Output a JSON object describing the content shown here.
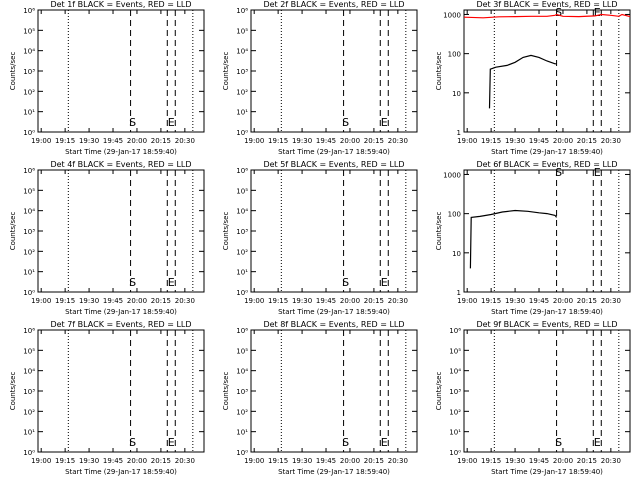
{
  "chart_data": [
    {
      "type": "line",
      "title": "Det 1f BLACK = Events, RED = LLD",
      "xlabel": "Start Time (29-Jan-17 18:59:40)",
      "ylabel": "Counts/sec",
      "log_y": true,
      "xlim": [
        -2,
        102
      ],
      "xticks": [
        {
          "value": 0,
          "label": "19:00"
        },
        {
          "value": 15,
          "label": "19:15"
        },
        {
          "value": 30,
          "label": "19:30"
        },
        {
          "value": 45,
          "label": "19:45"
        },
        {
          "value": 60,
          "label": "20:00"
        },
        {
          "value": 75,
          "label": "20:15"
        },
        {
          "value": 90,
          "label": "20:30"
        }
      ],
      "ylim": [
        1,
        1000000
      ],
      "yticks": [
        {
          "value": 1,
          "label": "10⁰"
        },
        {
          "value": 10,
          "label": "10¹"
        },
        {
          "value": 100,
          "label": "10²"
        },
        {
          "value": 1000,
          "label": "10³"
        },
        {
          "value": 10000,
          "label": "10⁴"
        },
        {
          "value": 100000,
          "label": "10⁵"
        },
        {
          "value": 1000000,
          "label": "10⁶"
        }
      ],
      "markers": [
        {
          "x": 17,
          "style": "dotted"
        },
        {
          "x": 56,
          "style": "dashed",
          "label": "S"
        },
        {
          "x": 79,
          "style": "dashed"
        },
        {
          "x": 84,
          "style": "dashed",
          "label": "E"
        },
        {
          "x": 95,
          "style": "dotted"
        }
      ],
      "series": []
    },
    {
      "type": "line",
      "title": "Det 2f BLACK = Events, RED = LLD",
      "xlabel": "Start Time (29-Jan-17 18:59:40)",
      "ylabel": "Counts/sec",
      "log_y": true,
      "xlim": [
        -2,
        102
      ],
      "xticks": [
        {
          "value": 0,
          "label": "19:00"
        },
        {
          "value": 15,
          "label": "19:15"
        },
        {
          "value": 30,
          "label": "19:30"
        },
        {
          "value": 45,
          "label": "19:45"
        },
        {
          "value": 60,
          "label": "20:00"
        },
        {
          "value": 75,
          "label": "20:15"
        },
        {
          "value": 90,
          "label": "20:30"
        }
      ],
      "ylim": [
        1,
        1000000
      ],
      "yticks": [
        {
          "value": 1,
          "label": "10⁰"
        },
        {
          "value": 10,
          "label": "10¹"
        },
        {
          "value": 100,
          "label": "10²"
        },
        {
          "value": 1000,
          "label": "10³"
        },
        {
          "value": 10000,
          "label": "10⁴"
        },
        {
          "value": 100000,
          "label": "10⁵"
        },
        {
          "value": 1000000,
          "label": "10⁶"
        }
      ],
      "markers": [
        {
          "x": 17,
          "style": "dotted"
        },
        {
          "x": 56,
          "style": "dashed",
          "label": "S"
        },
        {
          "x": 79,
          "style": "dashed"
        },
        {
          "x": 84,
          "style": "dashed",
          "label": "E"
        },
        {
          "x": 95,
          "style": "dotted"
        }
      ],
      "series": []
    },
    {
      "type": "line",
      "title": "Det 3f BLACK = Events, RED = LLD",
      "xlabel": "Start Time (29-Jan-17 18:59:40)",
      "ylabel": "Counts/sec",
      "log_y": true,
      "xlim": [
        -2,
        102
      ],
      "xticks": [
        {
          "value": 0,
          "label": "19:00"
        },
        {
          "value": 15,
          "label": "19:15"
        },
        {
          "value": 30,
          "label": "19:30"
        },
        {
          "value": 45,
          "label": "19:45"
        },
        {
          "value": 60,
          "label": "20:00"
        },
        {
          "value": 75,
          "label": "20:15"
        },
        {
          "value": 90,
          "label": "20:30"
        }
      ],
      "ylim": [
        1,
        1300
      ],
      "yticks": [
        1,
        10,
        100,
        1000
      ],
      "markers": [
        {
          "x": 17,
          "style": "dotted"
        },
        {
          "x": 56,
          "style": "dashed",
          "label": "S"
        },
        {
          "x": 79,
          "style": "dashed"
        },
        {
          "x": 84,
          "style": "dashed",
          "label": "E"
        },
        {
          "x": 95,
          "style": "dotted"
        }
      ],
      "series": [
        {
          "name": "Events",
          "color": "#000000",
          "x": [
            14,
            14.5,
            18,
            25,
            30,
            35,
            40,
            45,
            50,
            55,
            56
          ],
          "values": [
            4,
            40,
            45,
            50,
            60,
            80,
            90,
            80,
            65,
            55,
            55
          ]
        },
        {
          "name": "LLD",
          "color": "#ff0000",
          "x": [
            -2,
            10,
            20,
            30,
            40,
            50,
            55,
            56,
            60,
            70,
            80,
            84,
            90,
            95,
            97,
            102
          ],
          "values": [
            850,
            820,
            870,
            880,
            900,
            900,
            950,
            1000,
            900,
            880,
            920,
            1000,
            950,
            900,
            1000,
            880
          ]
        }
      ]
    },
    {
      "type": "line",
      "title": "Det 4f BLACK = Events, RED = LLD",
      "xlabel": "Start Time (29-Jan-17 18:59:40)",
      "ylabel": "Counts/sec",
      "log_y": true,
      "xlim": [
        -2,
        102
      ],
      "xticks": [
        {
          "value": 0,
          "label": "19:00"
        },
        {
          "value": 15,
          "label": "19:15"
        },
        {
          "value": 30,
          "label": "19:30"
        },
        {
          "value": 45,
          "label": "19:45"
        },
        {
          "value": 60,
          "label": "20:00"
        },
        {
          "value": 75,
          "label": "20:15"
        },
        {
          "value": 90,
          "label": "20:30"
        }
      ],
      "ylim": [
        1,
        1000000
      ],
      "yticks": [
        {
          "value": 1,
          "label": "10⁰"
        },
        {
          "value": 10,
          "label": "10¹"
        },
        {
          "value": 100,
          "label": "10²"
        },
        {
          "value": 1000,
          "label": "10³"
        },
        {
          "value": 10000,
          "label": "10⁴"
        },
        {
          "value": 100000,
          "label": "10⁵"
        },
        {
          "value": 1000000,
          "label": "10⁶"
        }
      ],
      "markers": [
        {
          "x": 17,
          "style": "dotted"
        },
        {
          "x": 56,
          "style": "dashed",
          "label": "S"
        },
        {
          "x": 79,
          "style": "dashed"
        },
        {
          "x": 84,
          "style": "dashed",
          "label": "E"
        },
        {
          "x": 95,
          "style": "dotted"
        }
      ],
      "series": []
    },
    {
      "type": "line",
      "title": "Det 5f BLACK = Events, RED = LLD",
      "xlabel": "Start Time (29-Jan-17 18:59:40)",
      "ylabel": "Counts/sec",
      "log_y": true,
      "xlim": [
        -2,
        102
      ],
      "xticks": [
        {
          "value": 0,
          "label": "19:00"
        },
        {
          "value": 15,
          "label": "19:15"
        },
        {
          "value": 30,
          "label": "19:30"
        },
        {
          "value": 45,
          "label": "19:45"
        },
        {
          "value": 60,
          "label": "20:00"
        },
        {
          "value": 75,
          "label": "20:15"
        },
        {
          "value": 90,
          "label": "20:30"
        }
      ],
      "ylim": [
        1,
        1000000
      ],
      "yticks": [
        {
          "value": 1,
          "label": "10⁰"
        },
        {
          "value": 10,
          "label": "10¹"
        },
        {
          "value": 100,
          "label": "10²"
        },
        {
          "value": 1000,
          "label": "10³"
        },
        {
          "value": 10000,
          "label": "10⁴"
        },
        {
          "value": 100000,
          "label": "10⁵"
        },
        {
          "value": 1000000,
          "label": "10⁶"
        }
      ],
      "markers": [
        {
          "x": 17,
          "style": "dotted"
        },
        {
          "x": 56,
          "style": "dashed",
          "label": "S"
        },
        {
          "x": 79,
          "style": "dashed"
        },
        {
          "x": 84,
          "style": "dashed",
          "label": "E"
        },
        {
          "x": 95,
          "style": "dotted"
        }
      ],
      "series": []
    },
    {
      "type": "line",
      "title": "Det 6f BLACK = Events, RED = LLD",
      "xlabel": "Start Time (29-Jan-17 18:59:40)",
      "ylabel": "Counts/sec",
      "log_y": true,
      "xlim": [
        -2,
        102
      ],
      "xticks": [
        {
          "value": 0,
          "label": "19:00"
        },
        {
          "value": 15,
          "label": "19:15"
        },
        {
          "value": 30,
          "label": "19:30"
        },
        {
          "value": 45,
          "label": "19:45"
        },
        {
          "value": 60,
          "label": "20:00"
        },
        {
          "value": 75,
          "label": "20:15"
        },
        {
          "value": 90,
          "label": "20:30"
        }
      ],
      "ylim": [
        1,
        1300
      ],
      "yticks": [
        1,
        10,
        100,
        1000
      ],
      "markers": [
        {
          "x": 17,
          "style": "dotted"
        },
        {
          "x": 56,
          "style": "dashed",
          "label": "S"
        },
        {
          "x": 79,
          "style": "dashed"
        },
        {
          "x": 84,
          "style": "dashed",
          "label": "E"
        },
        {
          "x": 95,
          "style": "dotted"
        }
      ],
      "series": [
        {
          "name": "Events",
          "color": "#000000",
          "x": [
            2,
            2.5,
            8,
            15,
            22,
            30,
            38,
            45,
            50,
            55,
            56
          ],
          "values": [
            4,
            80,
            85,
            95,
            110,
            120,
            115,
            105,
            100,
            90,
            80
          ]
        }
      ]
    },
    {
      "type": "line",
      "title": "Det 7f BLACK = Events, RED = LLD",
      "xlabel": "Start Time (29-Jan-17 18:59:40)",
      "ylabel": "Counts/sec",
      "log_y": true,
      "xlim": [
        -2,
        102
      ],
      "xticks": [
        {
          "value": 0,
          "label": "19:00"
        },
        {
          "value": 15,
          "label": "19:15"
        },
        {
          "value": 30,
          "label": "19:30"
        },
        {
          "value": 45,
          "label": "19:45"
        },
        {
          "value": 60,
          "label": "20:00"
        },
        {
          "value": 75,
          "label": "20:15"
        },
        {
          "value": 90,
          "label": "20:30"
        }
      ],
      "ylim": [
        1,
        1000000
      ],
      "yticks": [
        {
          "value": 1,
          "label": "10⁰"
        },
        {
          "value": 10,
          "label": "10¹"
        },
        {
          "value": 100,
          "label": "10²"
        },
        {
          "value": 1000,
          "label": "10³"
        },
        {
          "value": 10000,
          "label": "10⁴"
        },
        {
          "value": 100000,
          "label": "10⁵"
        },
        {
          "value": 1000000,
          "label": "10⁶"
        }
      ],
      "markers": [
        {
          "x": 17,
          "style": "dotted"
        },
        {
          "x": 56,
          "style": "dashed",
          "label": "S"
        },
        {
          "x": 79,
          "style": "dashed"
        },
        {
          "x": 84,
          "style": "dashed",
          "label": "E"
        },
        {
          "x": 95,
          "style": "dotted"
        }
      ],
      "series": []
    },
    {
      "type": "line",
      "title": "Det 8f BLACK = Events, RED = LLD",
      "xlabel": "Start Time (29-Jan-17 18:59:40)",
      "ylabel": "Counts/sec",
      "log_y": true,
      "xlim": [
        -2,
        102
      ],
      "xticks": [
        {
          "value": 0,
          "label": "19:00"
        },
        {
          "value": 15,
          "label": "19:15"
        },
        {
          "value": 30,
          "label": "19:30"
        },
        {
          "value": 45,
          "label": "19:45"
        },
        {
          "value": 60,
          "label": "20:00"
        },
        {
          "value": 75,
          "label": "20:15"
        },
        {
          "value": 90,
          "label": "20:30"
        }
      ],
      "ylim": [
        1,
        1000000
      ],
      "yticks": [
        {
          "value": 1,
          "label": "10⁰"
        },
        {
          "value": 10,
          "label": "10¹"
        },
        {
          "value": 100,
          "label": "10²"
        },
        {
          "value": 1000,
          "label": "10³"
        },
        {
          "value": 10000,
          "label": "10⁴"
        },
        {
          "value": 100000,
          "label": "10⁵"
        },
        {
          "value": 1000000,
          "label": "10⁶"
        }
      ],
      "markers": [
        {
          "x": 17,
          "style": "dotted"
        },
        {
          "x": 56,
          "style": "dashed",
          "label": "S"
        },
        {
          "x": 79,
          "style": "dashed"
        },
        {
          "x": 84,
          "style": "dashed",
          "label": "E"
        },
        {
          "x": 95,
          "style": "dotted"
        }
      ],
      "series": []
    },
    {
      "type": "line",
      "title": "Det 9f BLACK = Events, RED = LLD",
      "xlabel": "Start Time (29-Jan-17 18:59:40)",
      "ylabel": "Counts/sec",
      "log_y": true,
      "xlim": [
        -2,
        102
      ],
      "xticks": [
        {
          "value": 0,
          "label": "19:00"
        },
        {
          "value": 15,
          "label": "19:15"
        },
        {
          "value": 30,
          "label": "19:30"
        },
        {
          "value": 45,
          "label": "19:45"
        },
        {
          "value": 60,
          "label": "20:00"
        },
        {
          "value": 75,
          "label": "20:15"
        },
        {
          "value": 90,
          "label": "20:30"
        }
      ],
      "ylim": [
        1,
        1000000
      ],
      "yticks": [
        {
          "value": 1,
          "label": "10⁰"
        },
        {
          "value": 10,
          "label": "10¹"
        },
        {
          "value": 100,
          "label": "10²"
        },
        {
          "value": 1000,
          "label": "10³"
        },
        {
          "value": 10000,
          "label": "10⁴"
        },
        {
          "value": 100000,
          "label": "10⁵"
        },
        {
          "value": 1000000,
          "label": "10⁶"
        }
      ],
      "markers": [
        {
          "x": 17,
          "style": "dotted"
        },
        {
          "x": 56,
          "style": "dashed",
          "label": "S"
        },
        {
          "x": 79,
          "style": "dashed"
        },
        {
          "x": 84,
          "style": "dashed",
          "label": "E"
        },
        {
          "x": 95,
          "style": "dotted"
        }
      ],
      "series": []
    }
  ]
}
